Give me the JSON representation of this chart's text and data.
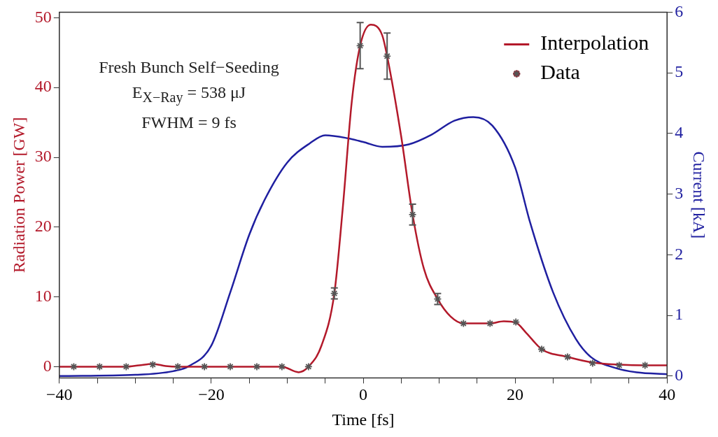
{
  "chart_data": {
    "type": "line",
    "xlabel": "Time [fs]",
    "ylabel": "Radiation Power [GW]",
    "y2label": "Current [kA]",
    "xlim": [
      -40,
      40
    ],
    "xticks": [
      {
        "value": -40,
        "label": "−40"
      },
      {
        "value": -35,
        "label": null
      },
      {
        "value": -30,
        "label": null
      },
      {
        "value": -25,
        "label": null
      },
      {
        "value": -20,
        "label": "−20"
      },
      {
        "value": -15,
        "label": null
      },
      {
        "value": -10,
        "label": null
      },
      {
        "value": -5,
        "label": null
      },
      {
        "value": 0,
        "label": "0"
      },
      {
        "value": 5,
        "label": null
      },
      {
        "value": 10,
        "label": null
      },
      {
        "value": 15,
        "label": null
      },
      {
        "value": 20,
        "label": "20"
      },
      {
        "value": 25,
        "label": null
      },
      {
        "value": 30,
        "label": null
      },
      {
        "value": 35,
        "label": null
      },
      {
        "value": 40,
        "label": "40"
      }
    ],
    "ylim": [
      -1.6,
      50.8
    ],
    "yticks": [
      0,
      10,
      20,
      30,
      40,
      50
    ],
    "y2lim": [
      -0.03,
      6
    ],
    "y2ticks": [
      0,
      1,
      2,
      3,
      4,
      5,
      6
    ],
    "legend": "top right",
    "grid": false,
    "annotations": [
      "Fresh Bunch Self−Seeding",
      "E$_{X−Ray}$ = 538 μJ",
      "FWHM = 9 fs"
    ],
    "series": [
      {
        "name": "Interpolation",
        "color": "#b3192a",
        "marker": "none",
        "x": [
          -40,
          -38.1,
          -34.7,
          -31.2,
          -29.5,
          -27.7,
          -26,
          -24.4,
          -20.9,
          -17.5,
          -14,
          -10.7,
          -8.5,
          -7.2,
          -5.5,
          -3.8,
          -2.7,
          -1.5,
          -0.4,
          1,
          2.5,
          3.15,
          5,
          6.5,
          8,
          9.8,
          11.5,
          13.2,
          16.7,
          18.5,
          20.1,
          21.5,
          23.5,
          26.9,
          30.2,
          33.7,
          37.1,
          40
        ],
        "values": [
          0,
          0,
          0,
          0,
          0.2,
          0.4,
          0.1,
          0,
          0,
          0,
          0,
          0,
          -0.8,
          0,
          3,
          10.5,
          22.6,
          38,
          46,
          49,
          47.5,
          44.5,
          33,
          21.8,
          14,
          9.7,
          7.2,
          6.2,
          6.2,
          6.5,
          6.3,
          4.8,
          2.5,
          1.4,
          0.6,
          0.3,
          0.2,
          0.2
        ]
      },
      {
        "axis": "y2",
        "color": "#1f1fa0",
        "marker": "none",
        "x": [
          -40,
          -30,
          -25,
          -23,
          -20,
          -17.5,
          -15,
          -13,
          -10,
          -7,
          -5,
          -2,
          0,
          2.5,
          6,
          9,
          12,
          14.5,
          17,
          20,
          22,
          25,
          28,
          30,
          33,
          36,
          40
        ],
        "values": [
          0,
          0.02,
          0.08,
          0.16,
          0.5,
          1.38,
          2.33,
          2.9,
          3.52,
          3.84,
          3.97,
          3.92,
          3.86,
          3.78,
          3.82,
          3.98,
          4.21,
          4.27,
          4.13,
          3.44,
          2.52,
          1.38,
          0.61,
          0.31,
          0.14,
          0.06,
          0.03
        ]
      },
      {
        "name": "Data",
        "type": "scatter",
        "color": "#555555",
        "marker": "cross",
        "x": [
          -38.1,
          -34.7,
          -31.2,
          -27.7,
          -24.4,
          -20.9,
          -17.5,
          -14,
          -10.7,
          -7.2,
          -3.8,
          -0.4,
          3.15,
          6.5,
          9.8,
          13.2,
          16.7,
          20.1,
          23.5,
          26.9,
          30.2,
          33.7,
          37.1
        ],
        "values": [
          0,
          0,
          0,
          0.3,
          0,
          0,
          0,
          0,
          0,
          0,
          10.5,
          46,
          44.5,
          21.8,
          9.7,
          6.2,
          6.2,
          6.4,
          2.5,
          1.4,
          0.5,
          0.2,
          0.2
        ],
        "errors": [
          null,
          null,
          null,
          null,
          null,
          null,
          null,
          null,
          null,
          null,
          0.8,
          3.3,
          3.3,
          1.5,
          0.8,
          null,
          null,
          null,
          null,
          null,
          null,
          null,
          null
        ]
      }
    ]
  }
}
